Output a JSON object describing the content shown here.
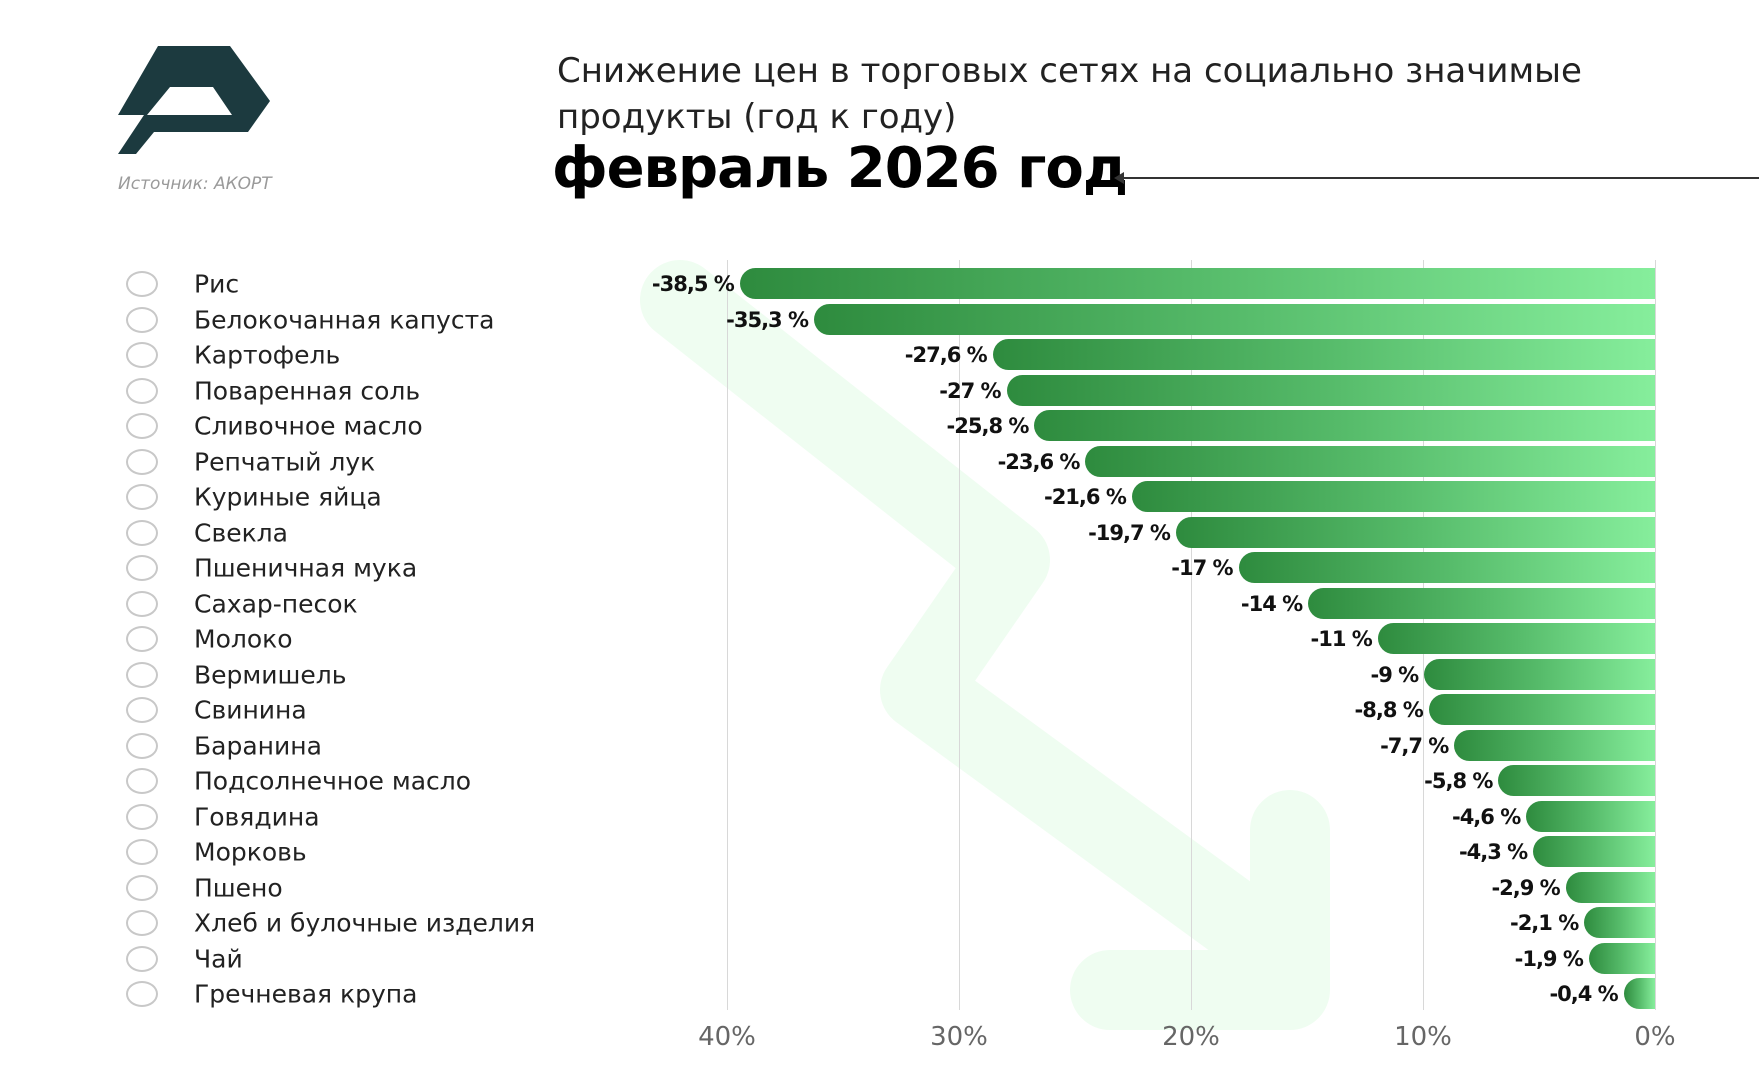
{
  "header": {
    "source": "Источник: АКОРТ",
    "title": "Снижение цен в торговых сетях на социально значимые продукты (год к году)",
    "subtitle": "февраль 2026 год",
    "logo_color": "#1c3a3f"
  },
  "colors": {
    "bar_start": "#2e8b3e",
    "bar_end": "#86ee9c",
    "background_arrow": "#effdf1"
  },
  "chart_data": {
    "type": "bar",
    "orientation": "horizontal",
    "title": "Снижение цен в торговых сетях на социально значимые продукты (год к году)",
    "subtitle": "февраль 2026 год",
    "categories": [
      "Рис",
      "Белокочанная капуста",
      "Картофель",
      "Поваренная соль",
      "Сливочное масло",
      "Репчатый лук",
      "Куриные яйца",
      "Свекла",
      "Пшеничная мука",
      "Сахар-песок",
      "Молоко",
      "Вермишель",
      "Свинина",
      "Баранина",
      "Подсолнечное масло",
      "Говядина",
      "Морковь",
      "Пшено",
      "Хлеб и булочные изделия",
      "Чай",
      "Гречневая крупа"
    ],
    "values": [
      -38.5,
      -35.3,
      -27.6,
      -27,
      -25.8,
      -23.6,
      -21.6,
      -19.7,
      -17,
      -14,
      -11,
      -9,
      -8.8,
      -7.7,
      -5.8,
      -4.6,
      -4.3,
      -2.9,
      -2.1,
      -1.9,
      -0.4
    ],
    "value_labels": [
      "-38,5 %",
      "-35,3 %",
      "-27,6 %",
      "-27 %",
      "-25,8 %",
      "-23,6 %",
      "-21,6 %",
      "-19,7 %",
      "-17 %",
      "-14 %",
      "-11 %",
      "-9 %",
      "-8,8 %",
      "-7,7 %",
      "-5,8 %",
      "-4,6 %",
      "-4,3 %",
      "-2,9 %",
      "-2,1 %",
      "-1,9 %",
      "-0,4 %"
    ],
    "icons": [
      "rice-bowl-icon",
      "cabbage-icon",
      "potato-icon",
      "salt-icon",
      "butter-icon",
      "onion-icon",
      "eggs-icon",
      "beet-icon",
      "flour-bag-icon",
      "sugar-spoon-icon",
      "milk-bottle-icon",
      "noodles-icon",
      "pork-icon",
      "lamb-icon",
      "oil-bottle-icon",
      "beef-icon",
      "carrot-icon",
      "millet-icon",
      "bread-icon",
      "tea-cup-icon",
      "buckwheat-icon"
    ],
    "xaxis": {
      "ticks": [
        40,
        30,
        20,
        10,
        0
      ],
      "tick_labels": [
        "40%",
        "30%",
        "20%",
        "10%",
        "0%"
      ],
      "range": [
        40,
        0
      ],
      "reversed": true
    },
    "grid": true
  }
}
